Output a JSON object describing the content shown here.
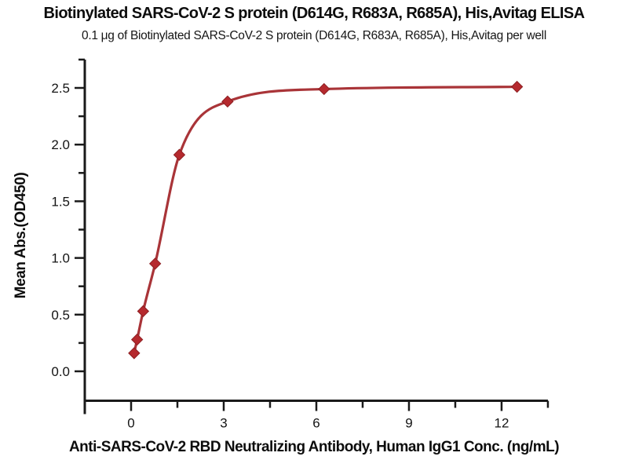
{
  "title": "Biotinylated SARS-CoV-2 S protein (D614G, R683A, R685A), His,Avitag ELISA",
  "subtitle": "0.1 μg of Biotinylated SARS-CoV-2 S protein (D614G, R683A, R685A), His,Avitag per well",
  "chart_data": {
    "type": "scatter",
    "series": [
      {
        "name": "Mean Abs.(OD450) vs antibody concentration",
        "x": [
          0.098,
          0.195,
          0.39,
          0.78,
          1.5625,
          3.125,
          6.25,
          12.5
        ],
        "y": [
          0.16,
          0.28,
          0.53,
          0.95,
          1.91,
          2.38,
          2.49,
          2.51
        ],
        "marker": "diamond",
        "fit_curve": "4PL sigmoidal dose-response"
      }
    ],
    "xlabel": "Anti-SARS-CoV-2 RBD Neutralizing Antibody, Human IgG1 Conc. (ng/mL)",
    "ylabel": "Mean Abs.(OD450)",
    "xlim": [
      -1.5,
      13.5
    ],
    "ylim": [
      -0.26,
      2.75
    ],
    "x_ticks_major": [
      0,
      3,
      6,
      9,
      12
    ],
    "x_tick_labels": [
      "0",
      "3",
      "6",
      "9",
      "12"
    ],
    "x_ticks_minor": [
      1.5,
      4.5,
      7.5,
      10.5,
      13.5
    ],
    "y_ticks_major": [
      0,
      0.5,
      1,
      1.5,
      2,
      2.5
    ],
    "y_tick_labels": [
      "0.0",
      "0.5",
      "1.0",
      "1.5",
      "2.0",
      "2.5"
    ],
    "y_ticks_minor": [
      0.25,
      0.75,
      1.25,
      1.75,
      2.25,
      2.75
    ],
    "grid": false,
    "legend": null,
    "colors": {
      "line": "#A93438",
      "marker": "#B5292E",
      "marker_edge": "#8C1F22",
      "axis": "#1A1A1A",
      "tick_text": "#141414"
    }
  }
}
